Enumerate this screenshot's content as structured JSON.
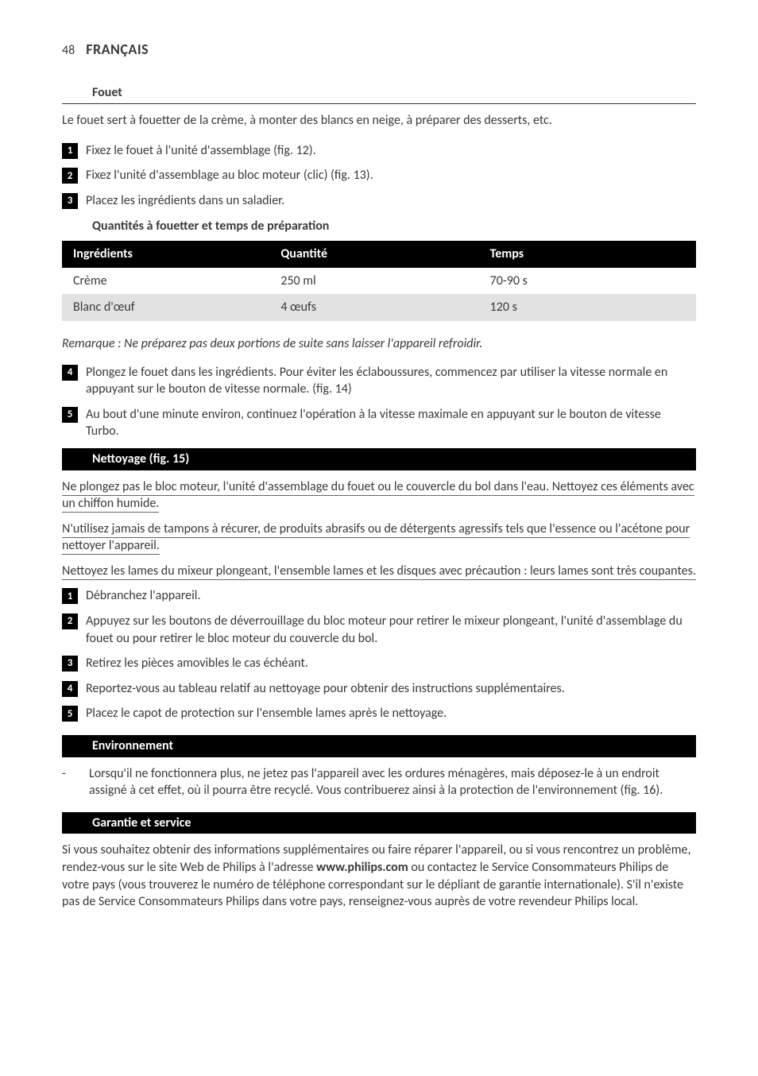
{
  "page": {
    "number": "48",
    "title": "FRANÇAIS"
  },
  "fouet": {
    "heading": "Fouet",
    "intro": "Le fouet sert à fouetter de la crème, à monter des blancs en neige, à préparer des desserts, etc.",
    "steps_a": [
      "Fixez le fouet à l'unité d'assemblage (fig. 12).",
      "Fixez l'unité d'assemblage au bloc moteur (clic) (fig. 13).",
      "Placez les ingrédients dans un saladier."
    ],
    "qty_heading": "Quantités à fouetter et temps de préparation",
    "table": {
      "columns": [
        "Ingrédients",
        "Quantité",
        "Temps"
      ],
      "rows": [
        [
          "Crème",
          "250 ml",
          "70-90 s"
        ],
        [
          "Blanc d'œuf",
          "4 œufs",
          "120 s"
        ]
      ]
    },
    "remark": "Remarque : Ne préparez pas deux portions de suite sans laisser l'appareil refroidir.",
    "steps_b_start": 4,
    "steps_b": [
      "Plongez le fouet dans les ingrédients. Pour éviter les éclaboussures, commencez par utiliser la vitesse normale en appuyant sur le bouton de vitesse normale.  (fig. 14)",
      "Au bout d'une minute environ, continuez l'opération à la vitesse maximale en appuyant sur le bouton de vitesse Turbo."
    ]
  },
  "nettoyage": {
    "heading": "Nettoyage (fig. 15)",
    "underlined": [
      "Ne plongez pas le bloc moteur, l'unité d'assemblage du fouet ou le couvercle du bol dans l'eau. Nettoyez ces éléments avec un chiffon humide.",
      "N'utilisez jamais de tampons à récurer, de produits abrasifs ou de détergents agressifs tels que l'essence ou l'acétone pour nettoyer l'appareil. ",
      "Nettoyez les lames du mixeur plongeant, l'ensemble lames et les disques avec précaution : leurs lames sont très coupantes."
    ],
    "steps": [
      "Débranchez l'appareil.",
      "Appuyez sur les boutons de déverrouillage du bloc moteur pour retirer le mixeur plongeant, l'unité d'assemblage du fouet ou pour retirer le bloc moteur du couvercle du bol.",
      "Retirez les pièces amovibles le cas échéant.",
      "Reportez-vous au tableau relatif au nettoyage pour obtenir des instructions supplémentaires.",
      "Placez le capot de protection sur l'ensemble lames après le nettoyage."
    ]
  },
  "environnement": {
    "heading": "Environnement",
    "bullet": "Lorsqu'il ne fonctionnera plus, ne jetez pas l'appareil avec les ordures ménagères, mais déposez-le à un endroit assigné à cet effet, où il pourra être recyclé. Vous contribuerez ainsi à la protection de l'environnement (fig. 16)."
  },
  "garantie": {
    "heading": "Garantie et service",
    "text_pre": "Si vous souhaitez obtenir des informations supplémentaires ou faire réparer l'appareil, ou si vous rencontrez un problème, rendez-vous sur le site Web de Philips à l'adresse ",
    "link": "www.philips.com",
    "text_post": " ou contactez le Service Consommateurs Philips de votre pays (vous trouverez le numéro de téléphone correspondant sur le dépliant de garantie internationale). S'il n'existe pas de Service Consommateurs Philips dans votre pays, renseignez-vous auprès de votre revendeur Philips local."
  }
}
